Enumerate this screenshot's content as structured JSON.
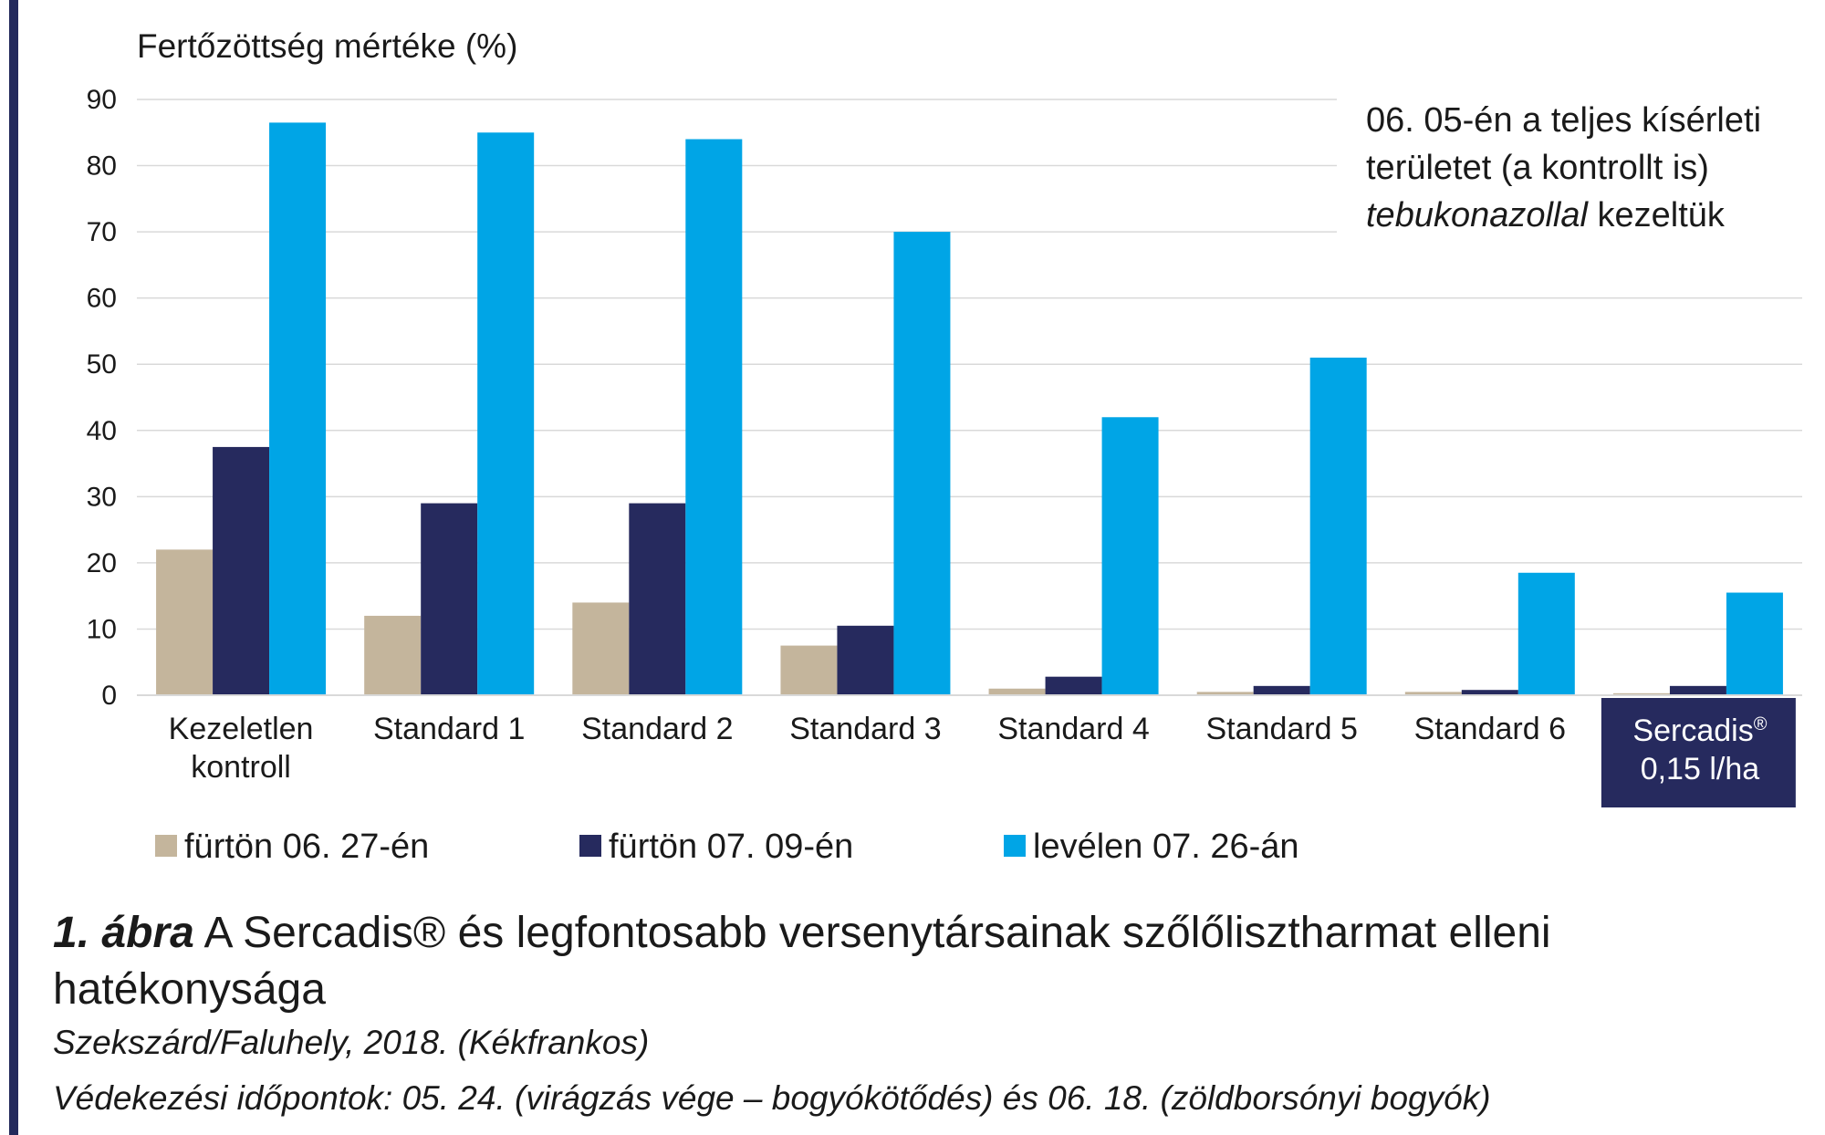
{
  "chart_data": {
    "type": "bar",
    "ylabel": "Fertőzöttség mértéke (%)",
    "ylim": [
      0,
      90
    ],
    "yticks": [
      "0",
      "10",
      "20",
      "30",
      "40",
      "50",
      "60",
      "70",
      "80",
      "90"
    ],
    "grid": true,
    "categories": [
      "Kezeletlen kontroll",
      "Standard 1",
      "Standard 2",
      "Standard 3",
      "Standard 4",
      "Standard 5",
      "Standard 6",
      "Sercadis® 0,15 l/ha"
    ],
    "category_lines": [
      [
        "Kezeletlen",
        "kontroll"
      ],
      [
        "Standard 1"
      ],
      [
        "Standard 2"
      ],
      [
        "Standard 3"
      ],
      [
        "Standard 4"
      ],
      [
        "Standard 5"
      ],
      [
        "Standard 6"
      ],
      [
        "Sercadis®",
        "0,15 l/ha"
      ]
    ],
    "highlighted_category": 7,
    "series": [
      {
        "name": "fürtön 06. 27-én",
        "color": "#c4b59c",
        "values": [
          22,
          12,
          14,
          7.5,
          1,
          0.5,
          0.5,
          0.3
        ]
      },
      {
        "name": "fürtön 07. 09-én",
        "color": "#262a5e",
        "values": [
          37.5,
          29,
          29,
          10.5,
          2.8,
          1.4,
          0.8,
          1.4
        ]
      },
      {
        "name": "levélen 07. 26-án",
        "color": "#00a5e6",
        "values": [
          86.5,
          85,
          84,
          70,
          42,
          51,
          18.5,
          15.5
        ]
      }
    ],
    "legend_position": "bottom",
    "annotation": {
      "line1": "06. 05-én a teljes kísérleti",
      "line2": "területet (a kontrollt is)",
      "line3_italic": "tebukonazollal",
      "line3_rest": " kezeltük"
    }
  },
  "caption": {
    "figure_number": "1. ábra",
    "title": " A Sercadis® és legfontosabb versenytársainak szőlőlisztharmat elleni hatékonysága",
    "location": "Szekszárd/Faluhely, 2018. (Kékfrankos)",
    "dates": "Védekezési időpontok: 05. 24. (virágzás vége – bogyókötődés) és 06. 18. (zöldborsónyi bogyók)"
  },
  "colors": {
    "accent_navy": "#262a5e",
    "bar_beige": "#c4b59c",
    "bar_blue": "#00a5e6",
    "gridline": "#d9d9d9"
  }
}
